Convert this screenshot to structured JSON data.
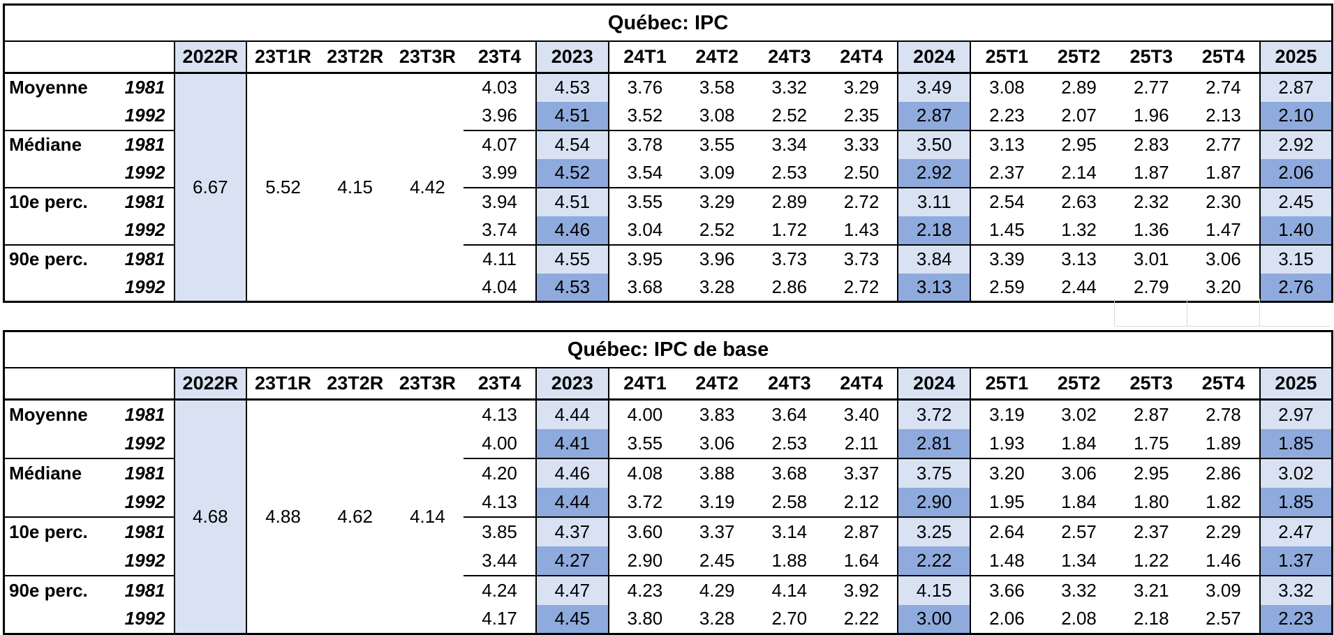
{
  "columns": [
    "2022R",
    "23T1R",
    "23T2R",
    "23T3R",
    "23T4",
    "2023",
    "24T1",
    "24T2",
    "24T3",
    "24T4",
    "2024",
    "25T1",
    "25T2",
    "25T3",
    "25T4",
    "2025"
  ],
  "colors": {
    "annual_light": "#D9E2F3",
    "annual_dark": "#8FAADC",
    "border": "#000000"
  },
  "tables": [
    {
      "title": "Québec: IPC",
      "revisions": [
        "6.67",
        "5.52",
        "4.15",
        "4.42"
      ],
      "groups": [
        {
          "label": "Moyenne",
          "rows": [
            {
              "year": "1981",
              "values": [
                "4.03",
                "4.53",
                "3.76",
                "3.58",
                "3.32",
                "3.29",
                "3.49",
                "3.08",
                "2.89",
                "2.77",
                "2.74",
                "2.87"
              ]
            },
            {
              "year": "1992",
              "values": [
                "3.96",
                "4.51",
                "3.52",
                "3.08",
                "2.52",
                "2.35",
                "2.87",
                "2.23",
                "2.07",
                "1.96",
                "2.13",
                "2.10"
              ]
            }
          ]
        },
        {
          "label": "Médiane",
          "rows": [
            {
              "year": "1981",
              "values": [
                "4.07",
                "4.54",
                "3.78",
                "3.55",
                "3.34",
                "3.33",
                "3.50",
                "3.13",
                "2.95",
                "2.83",
                "2.77",
                "2.92"
              ]
            },
            {
              "year": "1992",
              "values": [
                "3.99",
                "4.52",
                "3.54",
                "3.09",
                "2.53",
                "2.50",
                "2.92",
                "2.37",
                "2.14",
                "1.87",
                "1.87",
                "2.06"
              ]
            }
          ]
        },
        {
          "label": "10e perc.",
          "rows": [
            {
              "year": "1981",
              "values": [
                "3.94",
                "4.51",
                "3.55",
                "3.29",
                "2.89",
                "2.72",
                "3.11",
                "2.54",
                "2.63",
                "2.32",
                "2.30",
                "2.45"
              ]
            },
            {
              "year": "1992",
              "values": [
                "3.74",
                "4.46",
                "3.04",
                "2.52",
                "1.72",
                "1.43",
                "2.18",
                "1.45",
                "1.32",
                "1.36",
                "1.47",
                "1.40"
              ]
            }
          ]
        },
        {
          "label": "90e perc.",
          "rows": [
            {
              "year": "1981",
              "values": [
                "4.11",
                "4.55",
                "3.95",
                "3.96",
                "3.73",
                "3.73",
                "3.84",
                "3.39",
                "3.13",
                "3.01",
                "3.06",
                "3.15"
              ]
            },
            {
              "year": "1992",
              "values": [
                "4.04",
                "4.53",
                "3.68",
                "3.28",
                "2.86",
                "2.72",
                "3.13",
                "2.59",
                "2.44",
                "2.79",
                "3.20",
                "2.76"
              ]
            }
          ]
        }
      ]
    },
    {
      "title": "Québec: IPC de base",
      "revisions": [
        "4.68",
        "4.88",
        "4.62",
        "4.14"
      ],
      "groups": [
        {
          "label": "Moyenne",
          "rows": [
            {
              "year": "1981",
              "values": [
                "4.13",
                "4.44",
                "4.00",
                "3.83",
                "3.64",
                "3.40",
                "3.72",
                "3.19",
                "3.02",
                "2.87",
                "2.78",
                "2.97"
              ]
            },
            {
              "year": "1992",
              "values": [
                "4.00",
                "4.41",
                "3.55",
                "3.06",
                "2.53",
                "2.11",
                "2.81",
                "1.93",
                "1.84",
                "1.75",
                "1.89",
                "1.85"
              ]
            }
          ]
        },
        {
          "label": "Médiane",
          "rows": [
            {
              "year": "1981",
              "values": [
                "4.20",
                "4.46",
                "4.08",
                "3.88",
                "3.68",
                "3.37",
                "3.75",
                "3.20",
                "3.06",
                "2.95",
                "2.86",
                "3.02"
              ]
            },
            {
              "year": "1992",
              "values": [
                "4.13",
                "4.44",
                "3.72",
                "3.19",
                "2.58",
                "2.12",
                "2.90",
                "1.95",
                "1.84",
                "1.80",
                "1.82",
                "1.85"
              ]
            }
          ]
        },
        {
          "label": "10e perc.",
          "rows": [
            {
              "year": "1981",
              "values": [
                "3.85",
                "4.37",
                "3.60",
                "3.37",
                "3.14",
                "2.87",
                "3.25",
                "2.64",
                "2.57",
                "2.37",
                "2.29",
                "2.47"
              ]
            },
            {
              "year": "1992",
              "values": [
                "3.44",
                "4.27",
                "2.90",
                "2.45",
                "1.88",
                "1.64",
                "2.22",
                "1.48",
                "1.34",
                "1.22",
                "1.46",
                "1.37"
              ]
            }
          ]
        },
        {
          "label": "90e perc.",
          "rows": [
            {
              "year": "1981",
              "values": [
                "4.24",
                "4.47",
                "4.23",
                "4.29",
                "4.14",
                "3.92",
                "4.15",
                "3.66",
                "3.32",
                "3.21",
                "3.09",
                "3.32"
              ]
            },
            {
              "year": "1992",
              "values": [
                "4.17",
                "4.45",
                "3.80",
                "3.28",
                "2.70",
                "2.22",
                "3.00",
                "2.06",
                "2.08",
                "2.18",
                "2.57",
                "2.23"
              ]
            }
          ]
        }
      ]
    }
  ]
}
